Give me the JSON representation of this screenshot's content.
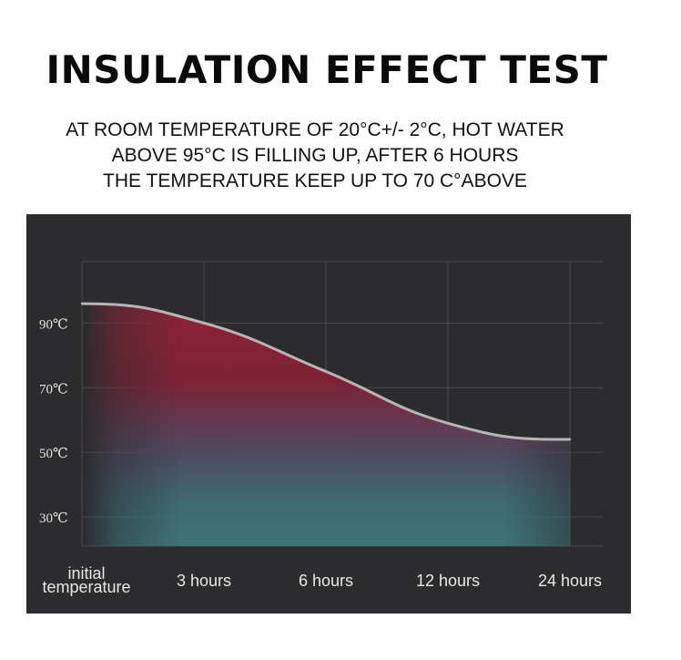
{
  "title": "INSULATION EFFECT TEST",
  "subtitle_lines": [
    "AT ROOM TEMPERATURE OF 20°C+/- 2°C, HOT WATER",
    "ABOVE 95°C IS FILLING UP, AFTER 6 HOURS",
    "THE TEMPERATURE KEEP UP TO 70 C°ABOVE"
  ],
  "colors": {
    "panel_bg": "#2c2c2e",
    "curve": "#b5b5b5",
    "warm": "#8c2338",
    "cool": "#3e7479"
  },
  "chart_data": {
    "type": "area",
    "categories": [
      "initial temperature",
      "3 hours",
      "6 hours",
      "12 hours",
      "24 hours"
    ],
    "category_lines": [
      [
        "initial",
        "temperature"
      ],
      [
        "3 hours"
      ],
      [
        "6 hours"
      ],
      [
        "12 hours"
      ],
      [
        "24 hours"
      ]
    ],
    "values": [
      96,
      90,
      75,
      59,
      54
    ],
    "y_ticks": [
      30,
      50,
      70,
      90
    ],
    "y_tick_labels": [
      "30℃",
      "50℃",
      "70℃",
      "90℃"
    ],
    "ylim": [
      21,
      109
    ],
    "grid": true,
    "legend": "none"
  }
}
